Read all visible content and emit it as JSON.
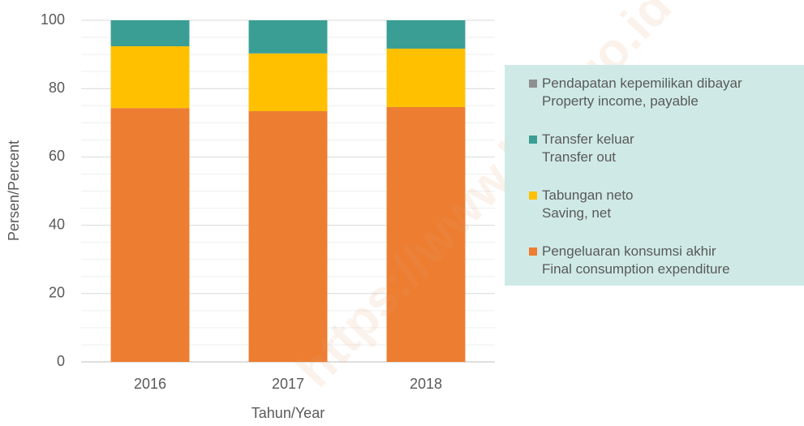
{
  "chart_data": {
    "type": "stacked_bar",
    "categories": [
      "2016",
      "2017",
      "2018"
    ],
    "series": [
      {
        "name": "Pengeluaran konsumsi akhir\nFinal consumption expenditure",
        "color": "#ed7d31",
        "values": [
          74.3,
          73.4,
          74.6
        ]
      },
      {
        "name": "Tabungan neto\nSaving, net",
        "color": "#ffc000",
        "values": [
          18.1,
          16.9,
          17.1
        ]
      },
      {
        "name": "Transfer keluar\nTransfer out",
        "color": "#3a9e94",
        "values": [
          7.6,
          9.7,
          8.3
        ]
      },
      {
        "name": "Pendapatan kepemilikan dibayar\nProperty income, payable",
        "color": "#909090",
        "values": [
          0,
          0,
          0
        ]
      }
    ],
    "ylim": [
      0,
      100
    ],
    "yticks": [
      0,
      20,
      40,
      60,
      80,
      100
    ],
    "minor_yticks": [
      5,
      10,
      15,
      25,
      30,
      35,
      45,
      50,
      55,
      65,
      70,
      75,
      85,
      90,
      95
    ],
    "grid": true,
    "legend": "right",
    "xlabel": "Tahun/Year",
    "ylabel": "Persen/Percent",
    "watermark": "https://www.bps.go.id"
  }
}
